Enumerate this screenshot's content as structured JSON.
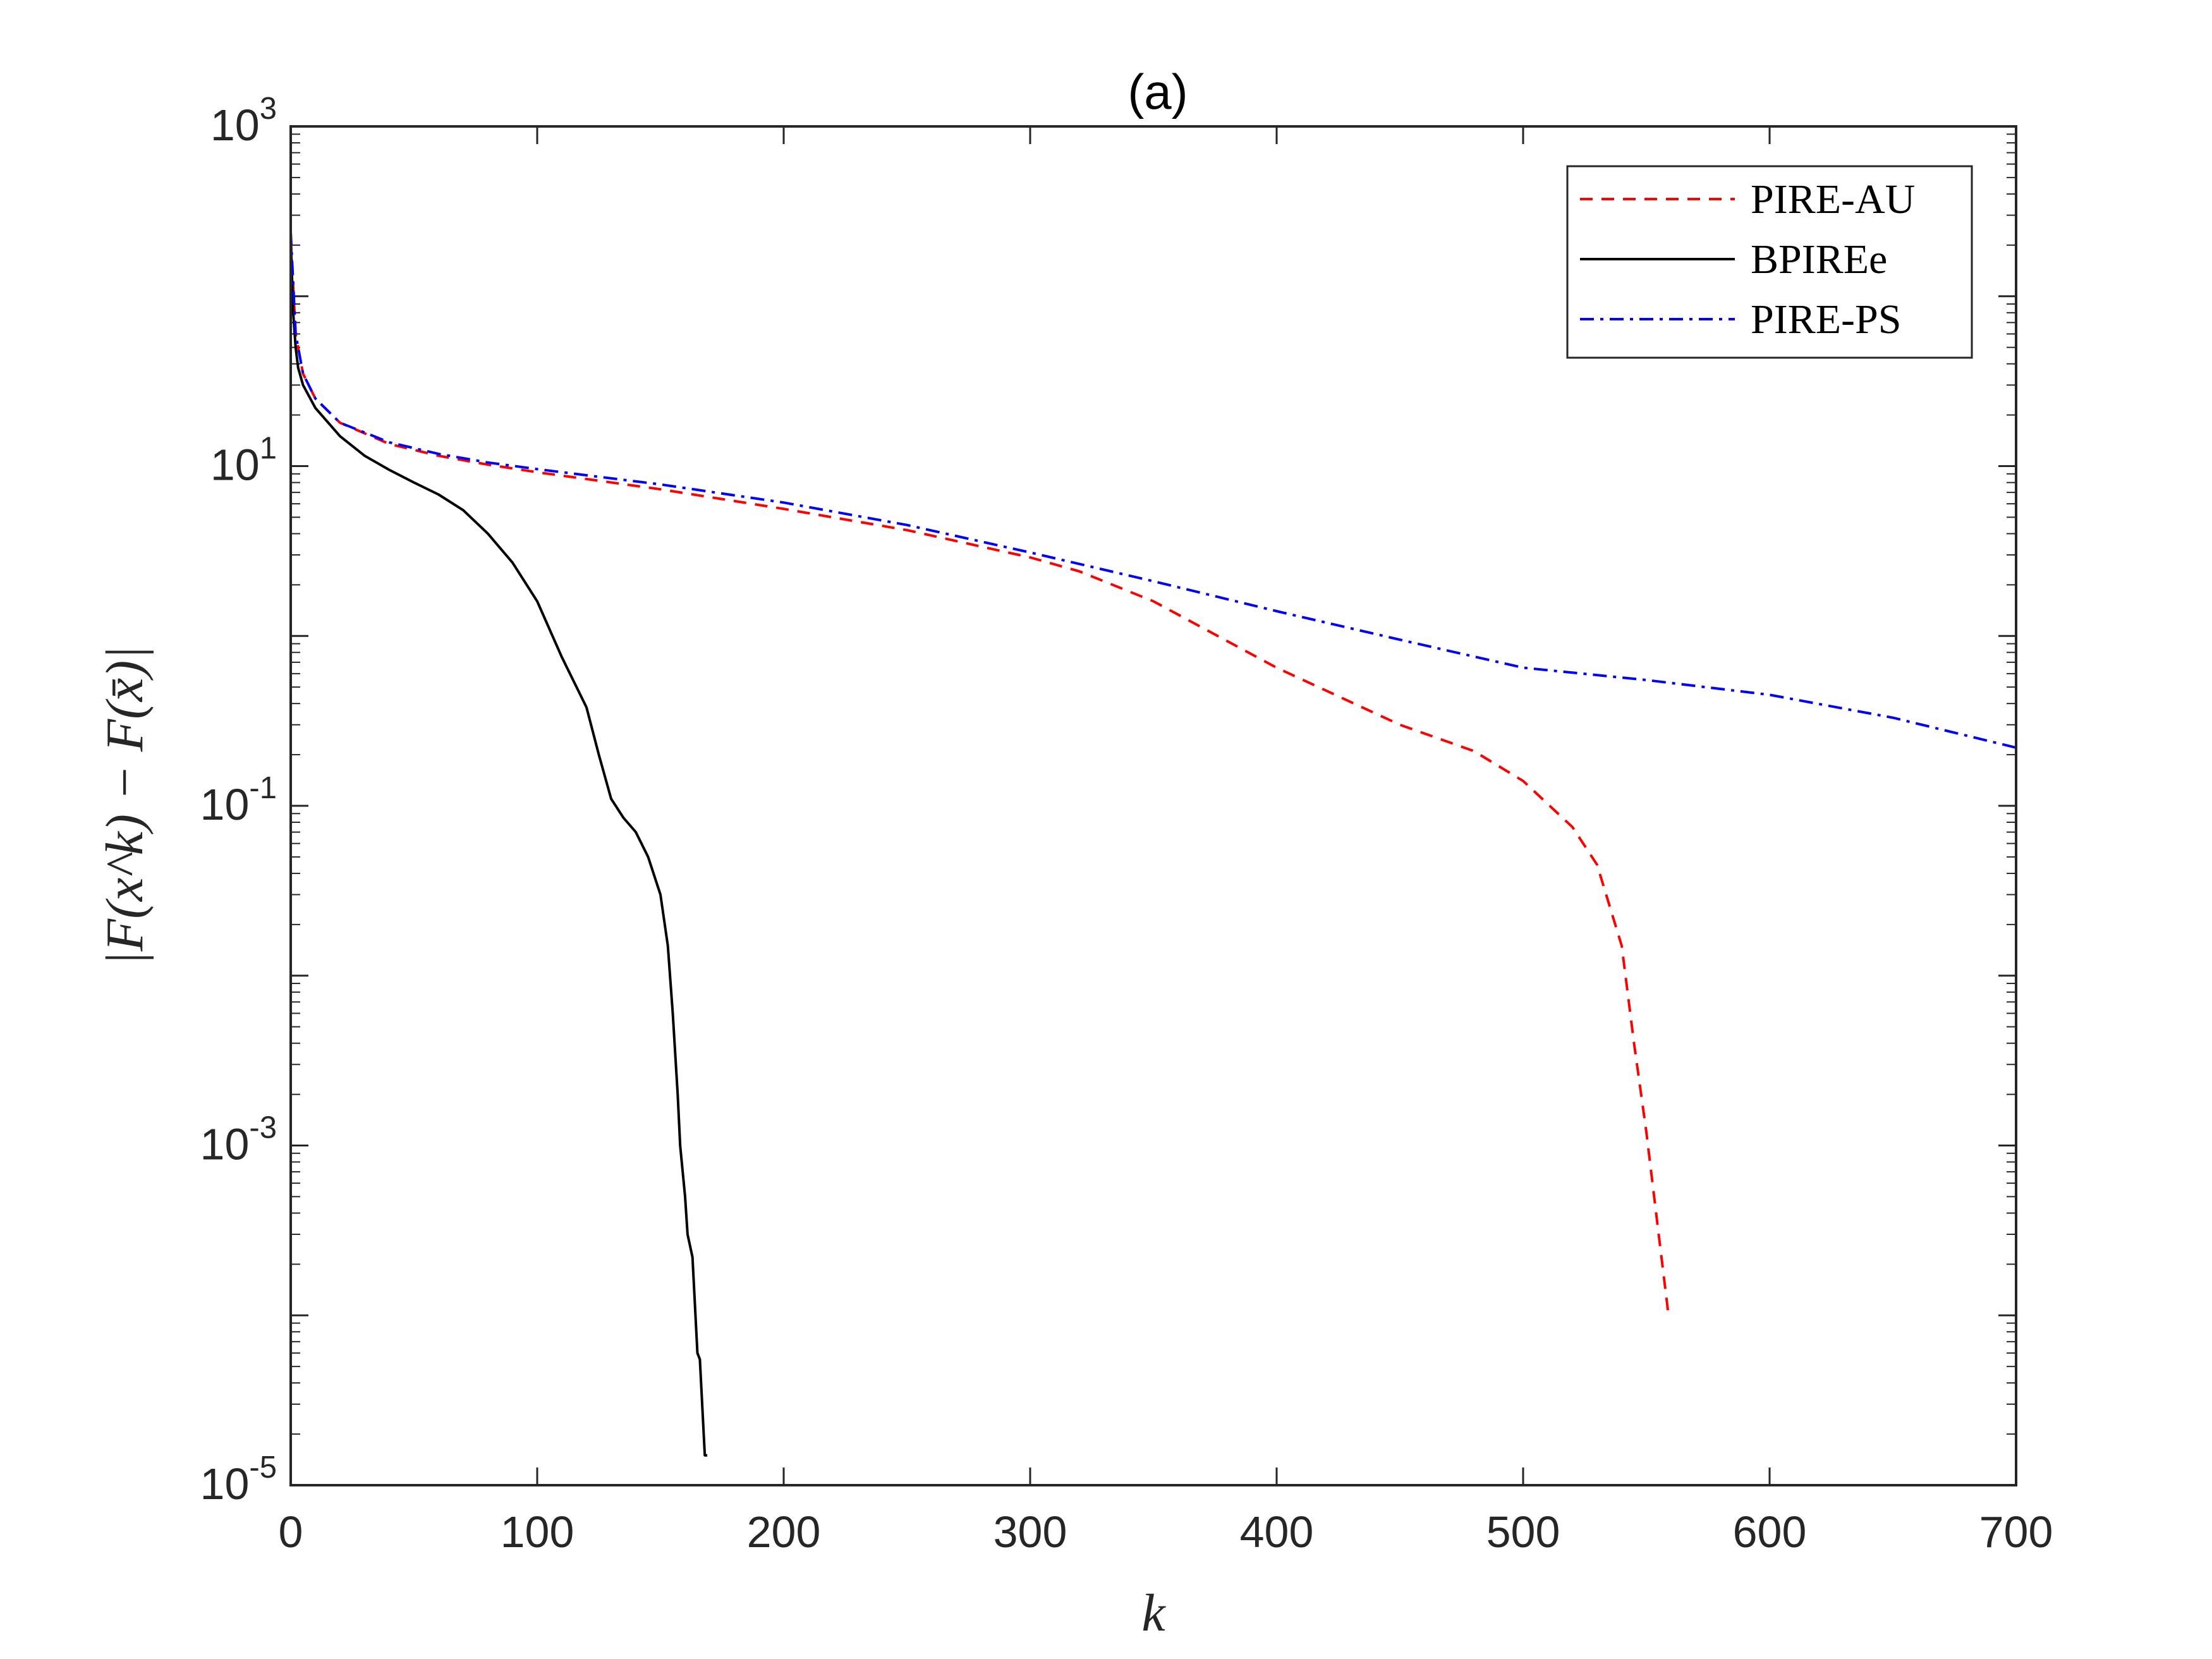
{
  "chart_data": {
    "type": "line",
    "title": "(a)",
    "xlabel": "k",
    "ylabel": "|F(x^k) − F(x̄)|",
    "xlim": [
      0,
      700
    ],
    "ylim": [
      1e-05,
      1000
    ],
    "yscale": "log",
    "grid": false,
    "legend_position": "top-right",
    "x_ticks": [
      "0",
      "100",
      "200",
      "300",
      "400",
      "500",
      "600",
      "700"
    ],
    "y_ticks": [
      {
        "base": "10",
        "exp": "-5"
      },
      {
        "base": "10",
        "exp": "-3"
      },
      {
        "base": "10",
        "exp": "-1"
      },
      {
        "base": "10",
        "exp": "1"
      },
      {
        "base": "10",
        "exp": "3"
      }
    ],
    "series": [
      {
        "name": "PIRE-AU",
        "color": "#ff0000",
        "style": "dashed",
        "x": [
          0,
          2,
          5,
          10,
          20,
          40,
          60,
          80,
          100,
          150,
          200,
          250,
          300,
          320,
          350,
          400,
          450,
          480,
          500,
          520,
          530,
          540,
          545,
          550,
          555,
          559
        ],
        "y": [
          220,
          60,
          35,
          25,
          18,
          13.5,
          11.5,
          10.2,
          9.2,
          7.3,
          5.6,
          4.2,
          2.9,
          2.4,
          1.6,
          0.65,
          0.3,
          0.21,
          0.14,
          0.075,
          0.045,
          0.015,
          0.004,
          0.0012,
          0.0003,
          0.0001
        ]
      },
      {
        "name": "BPIREe",
        "color": "#000000",
        "style": "solid",
        "x": [
          0,
          1,
          2,
          3,
          5,
          10,
          20,
          30,
          40,
          50,
          60,
          70,
          80,
          90,
          100,
          110,
          120,
          125,
          130,
          135,
          140,
          145,
          150,
          153,
          155,
          157,
          158,
          160,
          161,
          163,
          165,
          166,
          168,
          169
        ],
        "y": [
          220,
          80,
          50,
          38,
          30,
          22,
          15,
          11.5,
          9.5,
          8,
          6.8,
          5.5,
          4,
          2.7,
          1.6,
          0.75,
          0.38,
          0.2,
          0.11,
          0.085,
          0.07,
          0.05,
          0.03,
          0.015,
          0.006,
          0.002,
          0.001,
          0.0005,
          0.0003,
          0.00022,
          6e-05,
          5.5e-05,
          1.5e-05,
          1.5e-05
        ]
      },
      {
        "name": "PIRE-PS",
        "color": "#0000ff",
        "style": "dashdot",
        "x": [
          0,
          2,
          5,
          10,
          20,
          40,
          60,
          80,
          100,
          150,
          200,
          250,
          300,
          350,
          400,
          450,
          500,
          550,
          600,
          650,
          700
        ],
        "y": [
          240,
          60,
          35,
          25,
          18,
          13.8,
          11.8,
          10.5,
          9.6,
          7.8,
          6.1,
          4.5,
          3.1,
          2.1,
          1.4,
          0.95,
          0.65,
          0.55,
          0.45,
          0.33,
          0.22
        ]
      }
    ]
  }
}
